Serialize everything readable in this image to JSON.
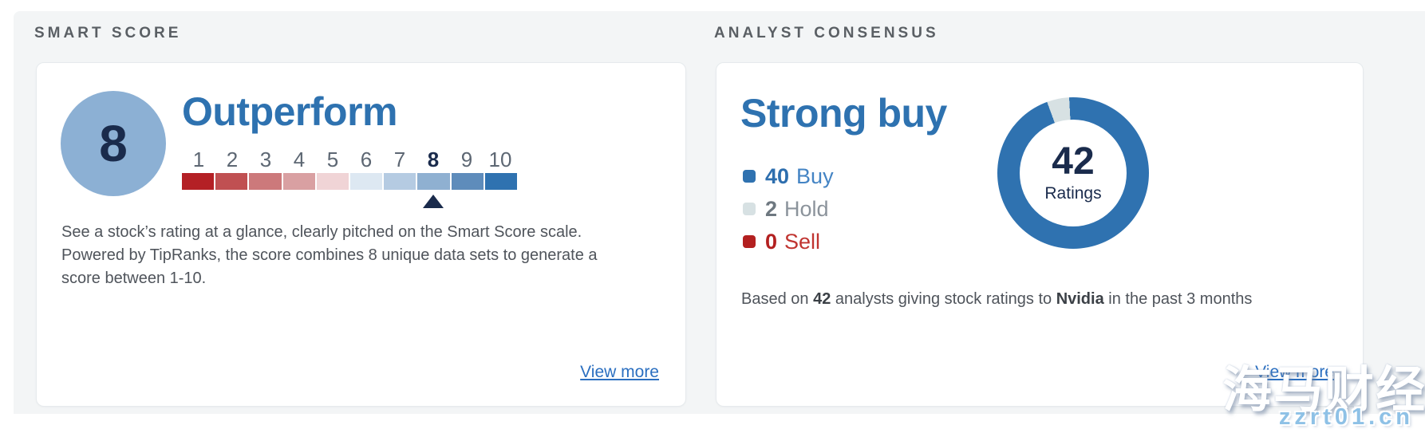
{
  "smart_score": {
    "section_title": "SMART SCORE",
    "score": "8",
    "rating_label": "Outperform",
    "scale_numbers": [
      "1",
      "2",
      "3",
      "4",
      "5",
      "6",
      "7",
      "8",
      "9",
      "10"
    ],
    "scale_colors": [
      "#b42025",
      "#c05052",
      "#cc797b",
      "#d9a0a2",
      "#f0d4d6",
      "#dde8f2",
      "#b5cbe2",
      "#8fb0d1",
      "#5e8cbb",
      "#2f72b0"
    ],
    "selected": 8,
    "description": "See a stock’s rating at a glance, clearly pitched on the Smart Score scale. Powered by TipRanks, the score combines 8 unique data sets to generate a score between 1-10.",
    "view_more": "View more"
  },
  "analyst_consensus": {
    "section_title": "ANALYST CONSENSUS",
    "headline": "Strong buy",
    "colors": {
      "buy": "#2f72b0",
      "hold": "#d7e1e3",
      "sell": "#b32020"
    },
    "legend": [
      {
        "count": "40",
        "label": "Buy",
        "swatch_color": "#2f72b0",
        "count_color": "#2d6eae",
        "label_color": "#4484c4"
      },
      {
        "count": "2",
        "label": "Hold",
        "swatch_color": "#d7e1e3",
        "count_color": "#6e7880",
        "label_color": "#8b939b"
      },
      {
        "count": "0",
        "label": "Sell",
        "swatch_color": "#b32020",
        "count_color": "#b32020",
        "label_color": "#c03430"
      }
    ],
    "donut": {
      "total": 42,
      "buy": 40,
      "hold": 2,
      "sell": 0,
      "total_display": "42",
      "ratings_label": "Ratings"
    },
    "footnote": {
      "p1": "Based on ",
      "b1": "42",
      "p2": " analysts giving stock ratings to ",
      "b2": "Nvidia",
      "p3": " in the past 3 months"
    },
    "view_more": "View more"
  },
  "watermark": {
    "brand": "海马财经",
    "site": "zzrt01.cn"
  },
  "chart_data": [
    {
      "type": "bar",
      "title": "Smart Score scale",
      "categories": [
        "1",
        "2",
        "3",
        "4",
        "5",
        "6",
        "7",
        "8",
        "9",
        "10"
      ],
      "values": [
        1,
        1,
        1,
        1,
        1,
        1,
        1,
        1,
        1,
        1
      ],
      "colors": [
        "#b42025",
        "#c05052",
        "#cc797b",
        "#d9a0a2",
        "#f0d4d6",
        "#dde8f2",
        "#b5cbe2",
        "#8fb0d1",
        "#5e8cbb",
        "#2f72b0"
      ],
      "annotations": [
        "selected score: 8",
        "rating: Outperform"
      ]
    },
    {
      "type": "pie",
      "title": "Analyst Consensus",
      "categories": [
        "Buy",
        "Hold",
        "Sell"
      ],
      "values": [
        40,
        2,
        0
      ],
      "colors": [
        "#2f72b0",
        "#d7e1e3",
        "#b32020"
      ],
      "center_label": "42 Ratings",
      "legend_position": "left",
      "annotations": [
        "consensus: Strong buy"
      ]
    }
  ]
}
